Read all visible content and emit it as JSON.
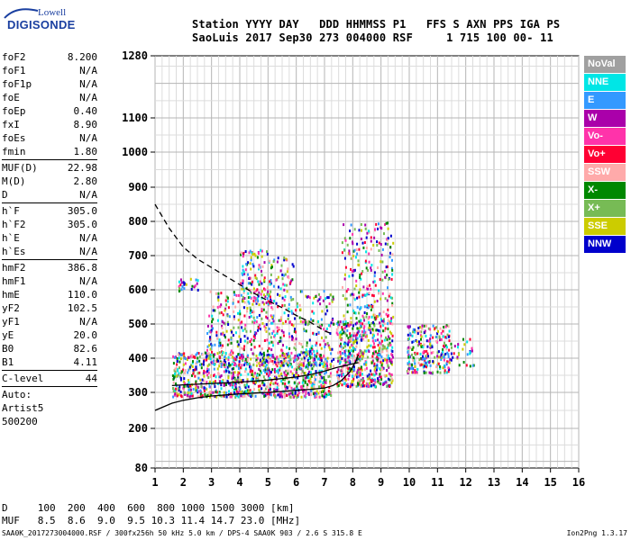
{
  "logo": {
    "small": "Lowell",
    "big": "DIGISONDE"
  },
  "header": {
    "line1": "Station YYYY DAY   DDD HHMMSS P1   FFS S AXN PPS IGA PS",
    "line2": "SaoLuis 2017 Sep30 273 004000 RSF     1 715 100 00- 11"
  },
  "params": [
    {
      "name": "foF2",
      "value": "8.200"
    },
    {
      "name": "foF1",
      "value": "N/A"
    },
    {
      "name": "foF1p",
      "value": "N/A"
    },
    {
      "name": "foE",
      "value": "N/A"
    },
    {
      "name": "foEp",
      "value": "0.40"
    },
    {
      "name": "fxI",
      "value": "8.90"
    },
    {
      "name": "foEs",
      "value": "N/A"
    },
    {
      "name": "fmin",
      "value": "1.80"
    },
    {
      "sep": true
    },
    {
      "name": "MUF(D)",
      "value": "22.98"
    },
    {
      "name": "M(D)",
      "value": "2.80"
    },
    {
      "name": "D",
      "value": "N/A"
    },
    {
      "sep": true
    },
    {
      "name": "h`F",
      "value": "305.0"
    },
    {
      "name": "h`F2",
      "value": "305.0"
    },
    {
      "name": "h`E",
      "value": "N/A"
    },
    {
      "name": "h`Es",
      "value": "N/A"
    },
    {
      "sep": true
    },
    {
      "name": "hmF2",
      "value": "386.8"
    },
    {
      "name": "hmF1",
      "value": "N/A"
    },
    {
      "name": "hmE",
      "value": "110.0"
    },
    {
      "name": "yF2",
      "value": "102.5"
    },
    {
      "name": "yF1",
      "value": "N/A"
    },
    {
      "name": "yE",
      "value": "20.0"
    },
    {
      "name": "B0",
      "value": "82.6"
    },
    {
      "name": "B1",
      "value": "4.11"
    },
    {
      "sep": true
    },
    {
      "name": "C-level",
      "value": "44"
    },
    {
      "sep": true
    },
    {
      "text": "Auto:"
    },
    {
      "text": "Artist5"
    },
    {
      "text": "500200"
    }
  ],
  "legend": [
    {
      "label": "NoVal",
      "color": "#a0a0a0"
    },
    {
      "label": "NNE",
      "color": "#00e6e6"
    },
    {
      "label": "E",
      "color": "#3399ff"
    },
    {
      "label": "W",
      "color": "#aa00aa"
    },
    {
      "label": "Vo-",
      "color": "#ff33aa"
    },
    {
      "label": "Vo+",
      "color": "#ff0033"
    },
    {
      "label": "SSW",
      "color": "#ffaaaa"
    },
    {
      "label": "X-",
      "color": "#008800"
    },
    {
      "label": "X+",
      "color": "#77bb55"
    },
    {
      "label": "SSE",
      "color": "#cccc00"
    },
    {
      "label": "NNW",
      "color": "#0000cc"
    }
  ],
  "footer": {
    "d_row": "D     100  200  400  600  800 1000 1500 3000 [km]",
    "muf_row": "MUF   8.5  8.6  9.0  9.5 10.3 11.4 14.7 23.0 [MHz]",
    "info": "SAA0K_2017273004000.RSF / 300fx256h 50 kHz 5.0 km / DPS-4 SAA0K 903 / 2.6 S 315.8 E",
    "version": "Ion2Png 1.3.17"
  },
  "chart_data": {
    "type": "scatter",
    "x_ticks": [
      "1",
      "2",
      "3",
      "4",
      "5",
      "6",
      "7",
      "8",
      "9",
      "10",
      "11",
      "12",
      "13",
      "14",
      "15",
      "16"
    ],
    "y_ticks": [
      "80",
      "200",
      "300",
      "400",
      "500",
      "600",
      "700",
      "800",
      "900",
      "1000",
      "1100",
      "1280"
    ],
    "xlim": [
      1,
      16
    ],
    "ylim": [
      80,
      1280
    ],
    "x_axis_units": "MHz",
    "y_axis_units": "km",
    "grid": true,
    "echo_regions": [
      {
        "x": [
          1.6,
          7.2
        ],
        "y": [
          290,
          420
        ],
        "density": 0.9
      },
      {
        "x": [
          2.8,
          7.3
        ],
        "y": [
          380,
          600
        ],
        "density": 0.35
      },
      {
        "x": [
          1.8,
          2.5
        ],
        "y": [
          600,
          640
        ],
        "density": 0.6
      },
      {
        "x": [
          4.0,
          5.1
        ],
        "y": [
          560,
          720
        ],
        "density": 0.5
      },
      {
        "x": [
          5.1,
          5.9
        ],
        "y": [
          600,
          700
        ],
        "density": 0.3
      },
      {
        "x": [
          7.4,
          9.4
        ],
        "y": [
          320,
          520
        ],
        "density": 0.9
      },
      {
        "x": [
          7.6,
          9.4
        ],
        "y": [
          520,
          800
        ],
        "density": 0.3
      },
      {
        "x": [
          9.9,
          11.4
        ],
        "y": [
          360,
          500
        ],
        "density": 0.8
      },
      {
        "x": [
          11.4,
          12.3
        ],
        "y": [
          380,
          460
        ],
        "density": 0.3
      }
    ],
    "ordinary_trace": {
      "x": [
        1.0,
        1.6,
        2.0,
        2.5,
        3.0,
        3.5,
        4.0,
        4.5,
        5.0,
        5.5,
        6.0,
        6.5,
        7.0,
        7.3,
        7.6,
        7.9,
        8.1,
        8.2
      ],
      "y": [
        250,
        270,
        278,
        285,
        290,
        293,
        296,
        298,
        300,
        303,
        306,
        309,
        313,
        320,
        335,
        360,
        390,
        410
      ]
    },
    "profile_trace": {
      "x": [
        1.6,
        2.0,
        3.0,
        4.0,
        5.0,
        6.0,
        6.5,
        7.0,
        7.4,
        7.8,
        8.2
      ],
      "y": [
        320,
        322,
        326,
        330,
        336,
        345,
        352,
        362,
        372,
        380,
        387
      ]
    },
    "muf_trace": {
      "x": [
        1.0,
        1.5,
        2.0,
        2.5,
        3.0,
        3.5,
        4.0,
        4.5,
        5.0,
        5.5,
        6.0,
        6.5,
        7.0,
        7.3
      ],
      "y": [
        850,
        780,
        725,
        690,
        665,
        640,
        615,
        590,
        568,
        548,
        525,
        505,
        480,
        470
      ]
    }
  }
}
